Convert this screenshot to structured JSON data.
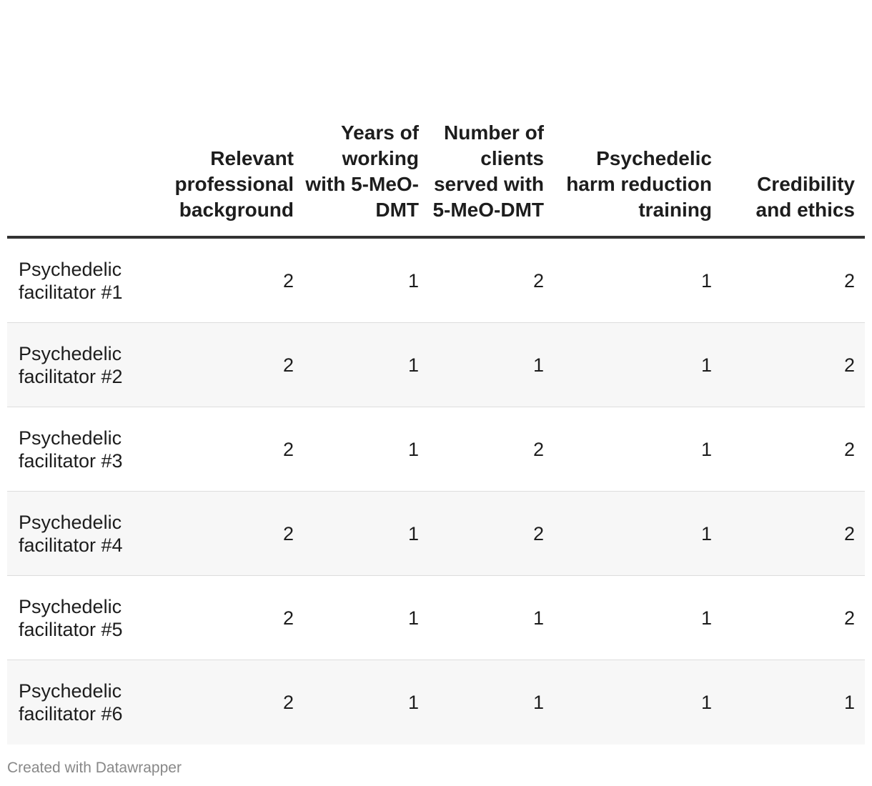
{
  "chart_data": {
    "type": "table",
    "columns": [
      "",
      "Relevant professional background",
      "Years of working with 5-MeO-DMT",
      "Number of clients served with 5-MeO-DMT",
      "Psychedelic harm reduction training",
      "Credibility and ethics"
    ],
    "rows": [
      {
        "label": "Psychedelic facilitator #1",
        "values": [
          2,
          1,
          2,
          1,
          2
        ]
      },
      {
        "label": "Psychedelic facilitator #2",
        "values": [
          2,
          1,
          1,
          1,
          2
        ]
      },
      {
        "label": "Psychedelic facilitator #3",
        "values": [
          2,
          1,
          2,
          1,
          2
        ]
      },
      {
        "label": "Psychedelic facilitator #4",
        "values": [
          2,
          1,
          2,
          1,
          2
        ]
      },
      {
        "label": "Psychedelic facilitator #5",
        "values": [
          2,
          1,
          1,
          1,
          2
        ]
      },
      {
        "label": "Psychedelic facilitator #6",
        "values": [
          2,
          1,
          1,
          1,
          1
        ]
      }
    ]
  },
  "footer": {
    "credit": "Created with Datawrapper"
  }
}
